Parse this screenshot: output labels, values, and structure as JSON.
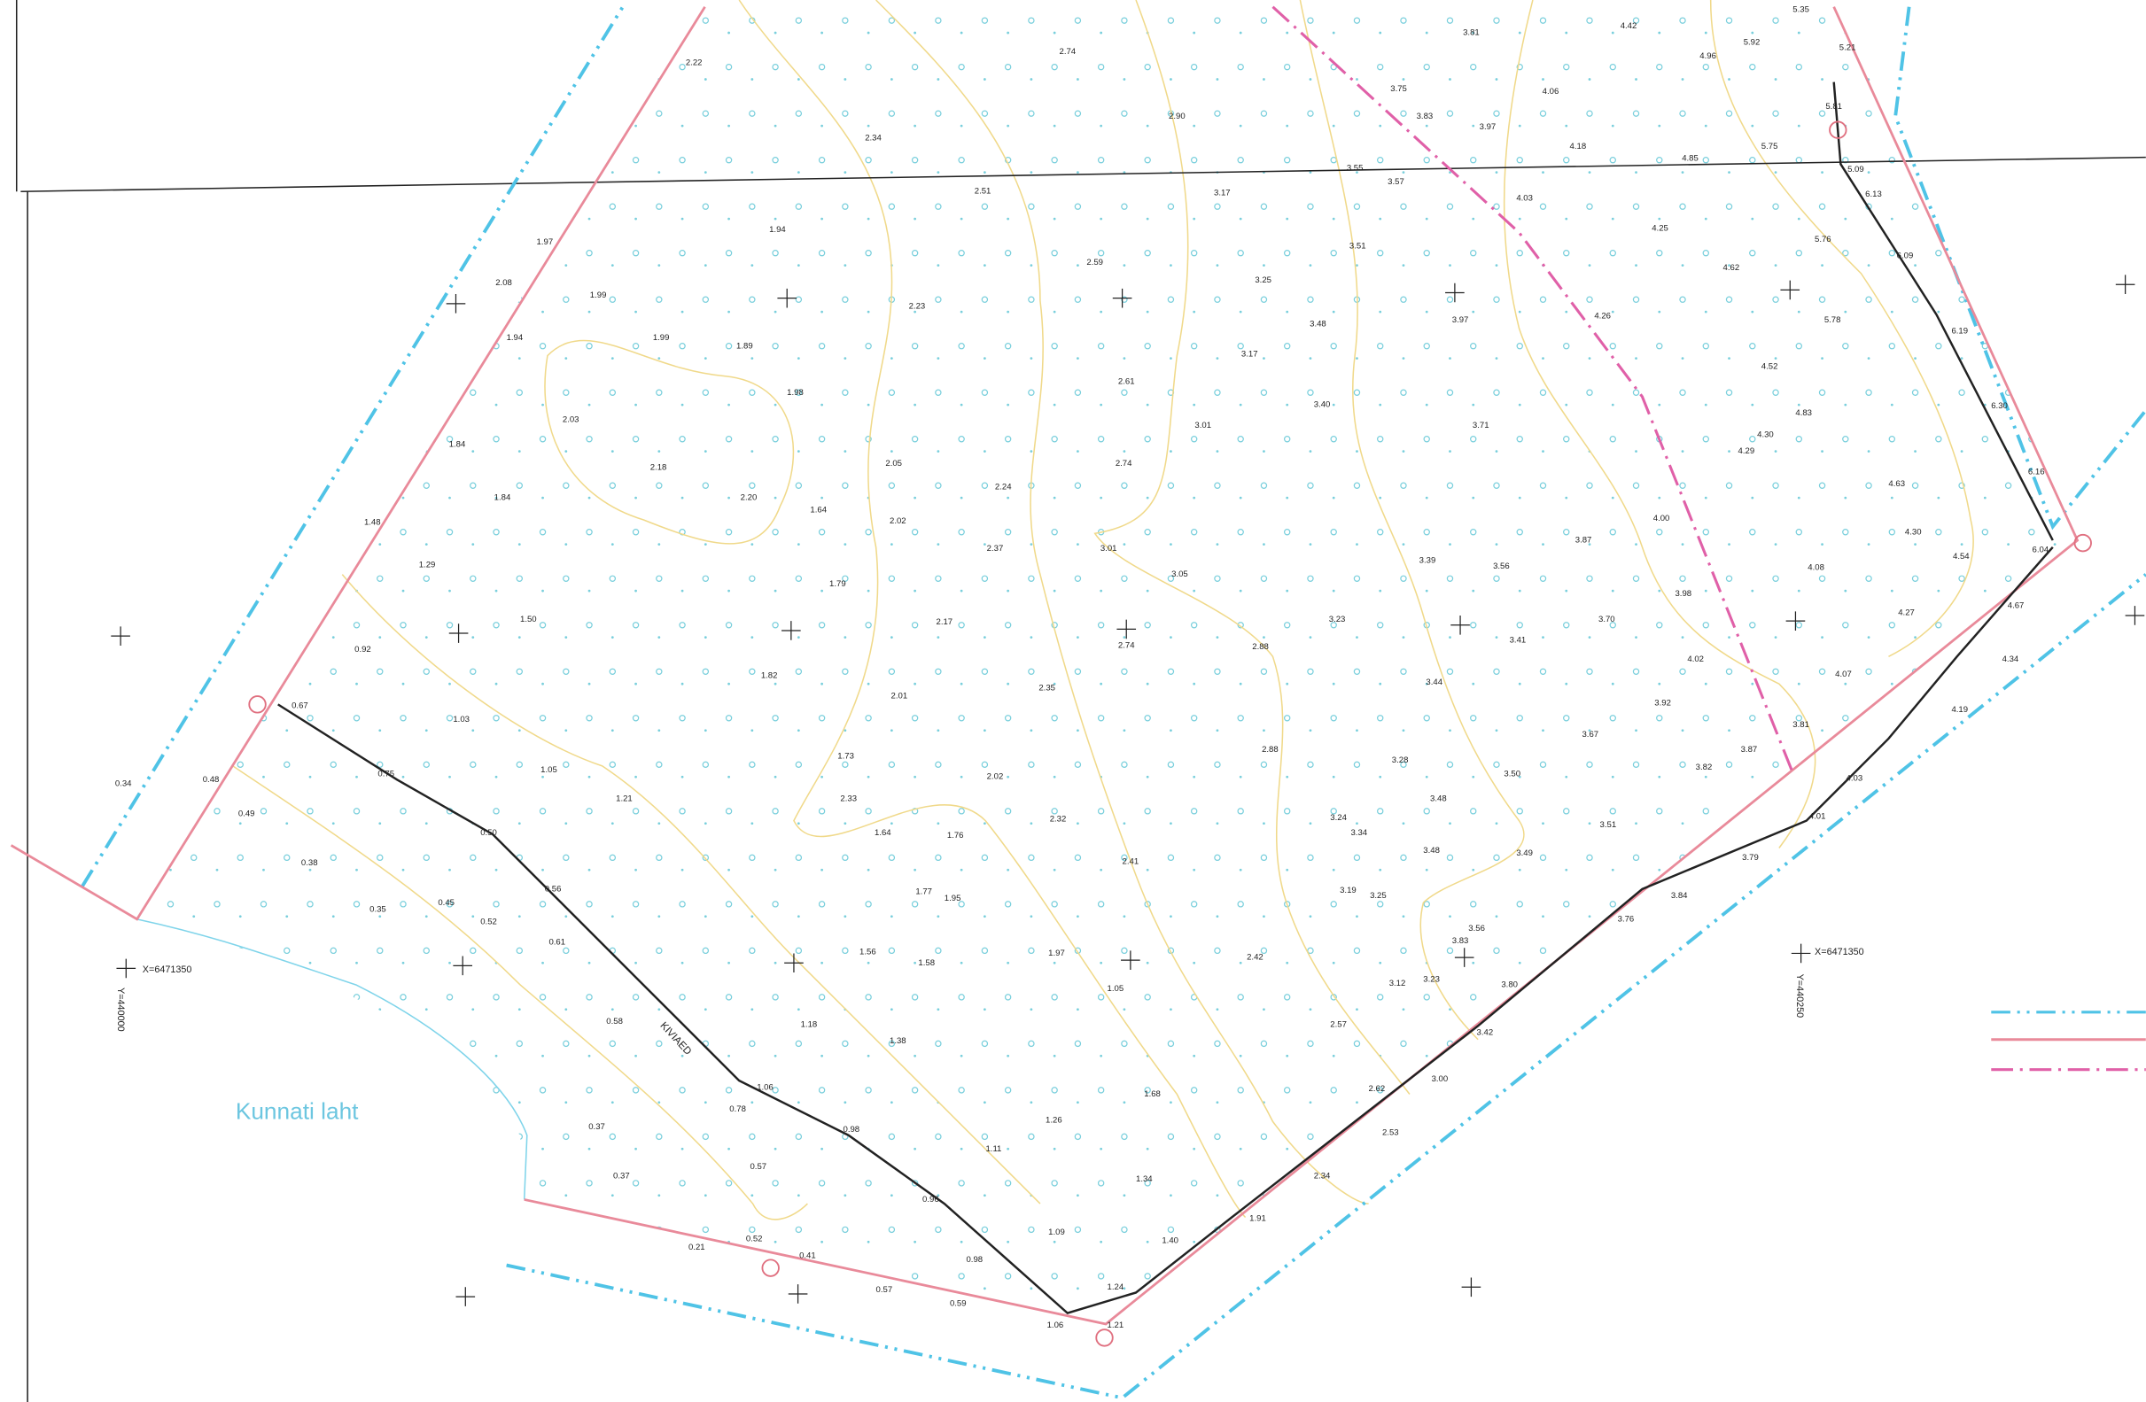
{
  "labels": {
    "lake": "Kunnati laht",
    "fence": "KIVIAED",
    "x_coord_west": "X=6471350",
    "x_coord_east": "X=6471350",
    "y_coord_west": "Y=440000",
    "y_coord_east": "Y=440250"
  },
  "elevations": [
    "2.22",
    "2.34",
    "2.74",
    "2.90",
    "3.81",
    "4.42",
    "5.35",
    "4.96",
    "5.92",
    "5.21",
    "3.75",
    "4.06",
    "3.83",
    "3.97",
    "4.18",
    "5.81",
    "4.85",
    "5.75",
    "2.51",
    "3.17",
    "3.55",
    "3.57",
    "4.03",
    "5.09",
    "6.13",
    "1.94",
    "4.25",
    "5.76",
    "1.97",
    "2.59",
    "3.51",
    "6.09",
    "4.62",
    "2.08",
    "1.99",
    "3.25",
    "2.23",
    "3.97",
    "4.26",
    "5.78",
    "1.94",
    "1.99",
    "1.89",
    "3.48",
    "3.17",
    "6.19",
    "4.52",
    "1.98",
    "2.61",
    "3.40",
    "6.30",
    "2.03",
    "3.01",
    "3.71",
    "4.83",
    "4.30",
    "4.29",
    "1.84",
    "2.18",
    "2.05",
    "2.74",
    "2.24",
    "6.16",
    "4.63",
    "1.84",
    "2.20",
    "1.64",
    "2.02",
    "4.00",
    "4.30",
    "1.48",
    "3.87",
    "2.37",
    "3.01",
    "3.39",
    "3.56",
    "4.08",
    "4.54",
    "6.04",
    "1.29",
    "3.05",
    "1.79",
    "3.98",
    "4.27",
    "4.67",
    "1.50",
    "3.23",
    "3.70",
    "2.17",
    "2.74",
    "2.88",
    "3.41",
    "0.92",
    "4.02",
    "4.34",
    "1.82",
    "3.44",
    "4.07",
    "2.35",
    "2.01",
    "3.92",
    "4.19",
    "0.67",
    "1.03",
    "3.81",
    "3.67",
    "2.88",
    "1.73",
    "3.87",
    "3.28",
    "3.82",
    "1.05",
    "0.75",
    "2.02",
    "3.50",
    "4.03",
    "0.34",
    "0.48",
    "2.33",
    "3.48",
    "1.21",
    "0.49",
    "3.24",
    "2.32",
    "4.01",
    "1.64",
    "1.76",
    "3.34",
    "3.51",
    "0.50",
    "3.48",
    "3.49",
    "0.38",
    "2.41",
    "3.79",
    "0.56",
    "1.77",
    "1.95",
    "3.19",
    "3.25",
    "3.84",
    "0.35",
    "0.45",
    "0.52",
    "3.56",
    "3.76",
    "0.61",
    "1.56",
    "1.97",
    "3.83",
    "1.58",
    "2.42",
    "3.12",
    "3.23",
    "3.80",
    "1.05",
    "0.58",
    "1.18",
    "2.57",
    "3.42",
    "1.38",
    "3.00",
    "1.06",
    "2.62",
    "1.68",
    "0.78",
    "1.26",
    "0.37",
    "0.98",
    "2.53",
    "1.11",
    "0.57",
    "0.37",
    "2.34",
    "1.34",
    "0.96",
    "1.91",
    "1.09",
    "0.21",
    "0.52",
    "1.40",
    "0.41",
    "0.98",
    "1.24",
    "0.57",
    "0.59",
    "1.06",
    "1.21"
  ]
}
